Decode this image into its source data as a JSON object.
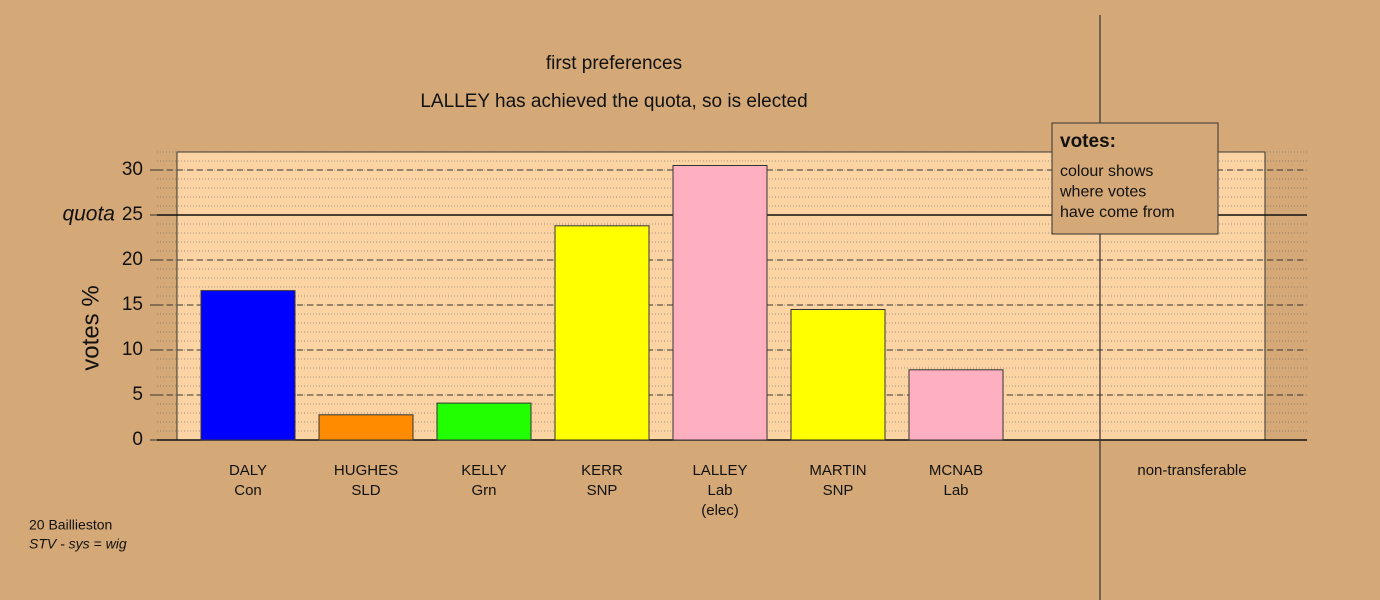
{
  "chart_data": {
    "type": "bar",
    "title": "first preferences",
    "subtitle": "LALLEY has achieved the quota, so is elected",
    "y_label": "votes %",
    "categories": [
      "DALY",
      "HUGHES",
      "KELLY",
      "KERR",
      "LALLEY",
      "MARTIN",
      "MCNAB",
      "non-transferable"
    ],
    "parties": [
      "Con",
      "SLD",
      "Grn",
      "SNP",
      "Lab",
      "SNP",
      "Lab",
      null
    ],
    "notes": [
      null,
      null,
      null,
      null,
      "(elec)",
      null,
      null,
      null
    ],
    "values": [
      16.6,
      2.8,
      4.1,
      23.8,
      30.5,
      14.5,
      7.8,
      0
    ],
    "colors": [
      "#0000ff",
      "#ff8c00",
      "#22ff00",
      "#ffff00",
      "#ffb0c0",
      "#ffff00",
      "#ffb0c0",
      "#cccccc"
    ],
    "ylim": [
      0,
      32
    ],
    "yticks": [
      0,
      5,
      10,
      15,
      20,
      25,
      30
    ],
    "minor_ytick_step": 1,
    "grid": true,
    "quota": {
      "label": "quota",
      "value": 25
    },
    "legend": {
      "title": "votes:",
      "lines": [
        "colour shows",
        "where votes",
        "have come from"
      ]
    },
    "footer": [
      "20 Baillieston",
      "STV - sys = wig"
    ]
  }
}
